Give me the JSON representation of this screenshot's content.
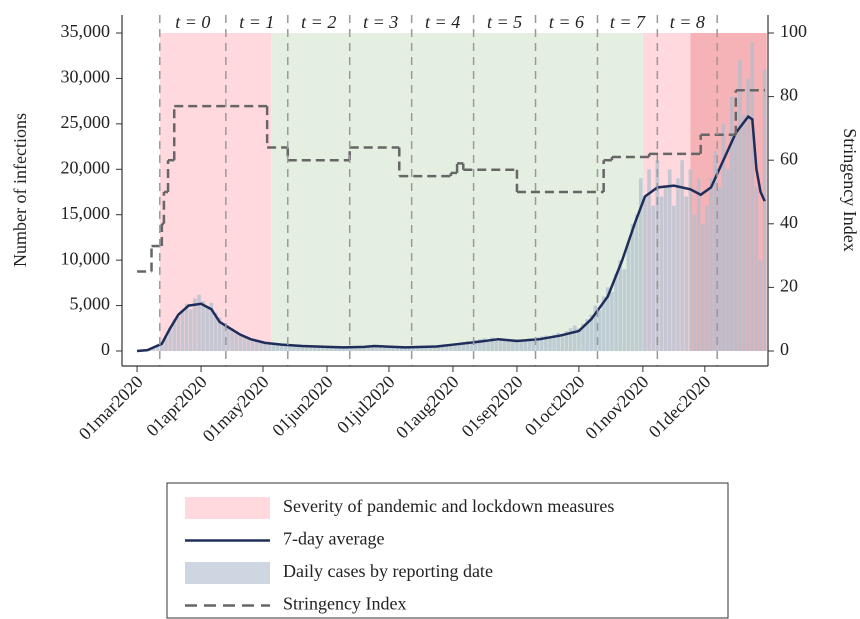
{
  "chart_data": {
    "type": "combo",
    "y_label": "Number of infections",
    "y2_label": "Stringency Index",
    "xlim": [
      -7.3,
      305.6
    ],
    "xticks": [
      {
        "value": 0,
        "label": "01mar2020"
      },
      {
        "value": 31,
        "label": "01apr2020"
      },
      {
        "value": 61,
        "label": "01may2020"
      },
      {
        "value": 92,
        "label": "01jun2020"
      },
      {
        "value": 122,
        "label": "01jul2020"
      },
      {
        "value": 153,
        "label": "01aug2020"
      },
      {
        "value": 184,
        "label": "01sep2020"
      },
      {
        "value": 214,
        "label": "01oct2020"
      },
      {
        "value": 245,
        "label": "01nov2020"
      },
      {
        "value": 275,
        "label": "01dec2020"
      }
    ],
    "ylim": [
      -1650,
      36980
    ],
    "yticks": [
      0,
      {
        "value": 5000,
        "label": "5,000"
      },
      {
        "value": 10000,
        "label": "10,000"
      },
      {
        "value": 15000,
        "label": "15,000"
      },
      {
        "value": 20000,
        "label": "20,000"
      },
      {
        "value": 25000,
        "label": "25,000"
      },
      {
        "value": 30000,
        "label": "30,000"
      },
      {
        "value": 35000,
        "label": "35,000"
      }
    ],
    "y2lim": [
      -4.72,
      105.66
    ],
    "y2ticks": [
      0,
      20,
      40,
      60,
      80,
      100
    ],
    "shading": [
      {
        "name": "Severity of pandemic and lockdown measures",
        "color": "#ffd9de",
        "ranges": [
          [
            11,
            65
          ],
          [
            245,
            268
          ]
        ]
      },
      {
        "color": "#e4efe1",
        "ranges": [
          [
            65,
            245
          ]
        ]
      },
      {
        "color": "#f6b3b7",
        "ranges": [
          [
            268,
            305
          ]
        ]
      }
    ],
    "periods": [
      {
        "label": "t = 0",
        "start": 11,
        "end": 43
      },
      {
        "label": "t = 1",
        "start": 43,
        "end": 73
      },
      {
        "label": "t = 2",
        "start": 73,
        "end": 103
      },
      {
        "label": "t = 3",
        "start": 103,
        "end": 133
      },
      {
        "label": "t = 4",
        "start": 133,
        "end": 163
      },
      {
        "label": "t = 5",
        "start": 163,
        "end": 193
      },
      {
        "label": "t = 6",
        "start": 193,
        "end": 223
      },
      {
        "label": "t = 7",
        "start": 223,
        "end": 252
      },
      {
        "label": "t = 8",
        "start": 252,
        "end": 281
      }
    ],
    "series": [
      {
        "name": "7-day average",
        "type": "line",
        "color": "#1f2d5a",
        "x": [
          0,
          5,
          12,
          16,
          20,
          25,
          31,
          36,
          40,
          45,
          50,
          55,
          62,
          70,
          80,
          92,
          100,
          110,
          115,
          120,
          130,
          145,
          155,
          165,
          175,
          184,
          195,
          205,
          214,
          220,
          228,
          235,
          241,
          246,
          252,
          260,
          268,
          273,
          278,
          283,
          290,
          296,
          298,
          300,
          302,
          304
        ],
        "values": [
          0,
          100,
          800,
          2500,
          4000,
          5000,
          5200,
          4600,
          3200,
          2500,
          1800,
          1300,
          900,
          700,
          550,
          450,
          400,
          450,
          550,
          500,
          400,
          500,
          750,
          1000,
          1300,
          1100,
          1300,
          1700,
          2200,
          3500,
          6000,
          10000,
          14000,
          17000,
          18000,
          18200,
          17800,
          17200,
          18000,
          20500,
          24000,
          25800,
          25500,
          20000,
          17500,
          16500
        ]
      },
      {
        "name": "Daily cases by reporting date",
        "type": "bar",
        "color": "#aebdcd",
        "x": [
          0,
          2,
          4,
          6,
          8,
          10,
          12,
          14,
          16,
          18,
          20,
          22,
          24,
          26,
          28,
          30,
          32,
          34,
          36,
          38,
          40,
          42,
          44,
          46,
          48,
          50,
          52,
          54,
          56,
          58,
          60,
          62,
          64,
          66,
          68,
          70,
          72,
          74,
          76,
          78,
          80,
          82,
          84,
          86,
          88,
          90,
          92,
          94,
          96,
          98,
          100,
          102,
          104,
          106,
          108,
          110,
          112,
          114,
          116,
          118,
          120,
          122,
          124,
          126,
          128,
          130,
          132,
          134,
          136,
          138,
          140,
          142,
          144,
          146,
          148,
          150,
          152,
          154,
          156,
          158,
          160,
          162,
          164,
          166,
          168,
          170,
          172,
          174,
          176,
          178,
          180,
          182,
          184,
          186,
          188,
          190,
          192,
          194,
          196,
          198,
          200,
          202,
          204,
          206,
          208,
          210,
          212,
          214,
          216,
          218,
          220,
          222,
          224,
          226,
          228,
          230,
          232,
          234,
          236,
          238,
          240,
          242,
          244,
          246,
          248,
          250,
          252,
          254,
          256,
          258,
          260,
          262,
          264,
          266,
          268,
          270,
          272,
          274,
          276,
          278,
          280,
          282,
          284,
          286,
          288,
          290,
          292,
          294,
          296,
          298,
          300,
          302,
          304
        ],
        "values": [
          0,
          50,
          100,
          200,
          400,
          700,
          1000,
          1500,
          2500,
          3500,
          3800,
          4500,
          5200,
          4600,
          5800,
          6200,
          5500,
          4800,
          5300,
          4200,
          3700,
          3000,
          2800,
          2500,
          2200,
          1800,
          1600,
          1500,
          1300,
          1100,
          1000,
          900,
          850,
          800,
          750,
          700,
          700,
          650,
          600,
          600,
          550,
          500,
          500,
          480,
          450,
          450,
          420,
          400,
          400,
          380,
          400,
          380,
          420,
          450,
          500,
          550,
          600,
          500,
          450,
          420,
          400,
          380,
          350,
          350,
          350,
          380,
          400,
          400,
          420,
          450,
          480,
          500,
          550,
          600,
          650,
          700,
          750,
          800,
          900,
          1000,
          1100,
          1000,
          1200,
          1300,
          1400,
          1200,
          1500,
          1300,
          1400,
          1300,
          1200,
          1100,
          1300,
          1000,
          1200,
          1400,
          1300,
          1500,
          1600,
          1700,
          1500,
          1800,
          2000,
          1900,
          2200,
          2500,
          2800,
          2500,
          3000,
          3500,
          4000,
          5000,
          4500,
          6000,
          7000,
          6500,
          8500,
          10000,
          9000,
          12000,
          14000,
          15000,
          19000,
          17000,
          20000,
          16000,
          21000,
          17000,
          18000,
          20000,
          16000,
          19000,
          21000,
          17000,
          20000,
          15000,
          19000,
          14000,
          16000,
          19000,
          22000,
          18000,
          25000,
          20000,
          28000,
          24000,
          32000,
          26000,
          30000,
          34000,
          18000,
          10000,
          31000
        ]
      },
      {
        "name": "Stringency Index",
        "type": "step",
        "axis": "y2",
        "color": "#666666",
        "x": [
          0,
          7,
          12,
          13,
          15,
          18,
          63,
          73,
          103,
          127,
          152,
          155,
          158,
          184,
          226,
          230,
          248,
          273,
          290
        ],
        "values": [
          25,
          33,
          40,
          50,
          60,
          77,
          64,
          60,
          64,
          55,
          56,
          59,
          57,
          50,
          60,
          61,
          62,
          68,
          82
        ]
      }
    ]
  }
}
